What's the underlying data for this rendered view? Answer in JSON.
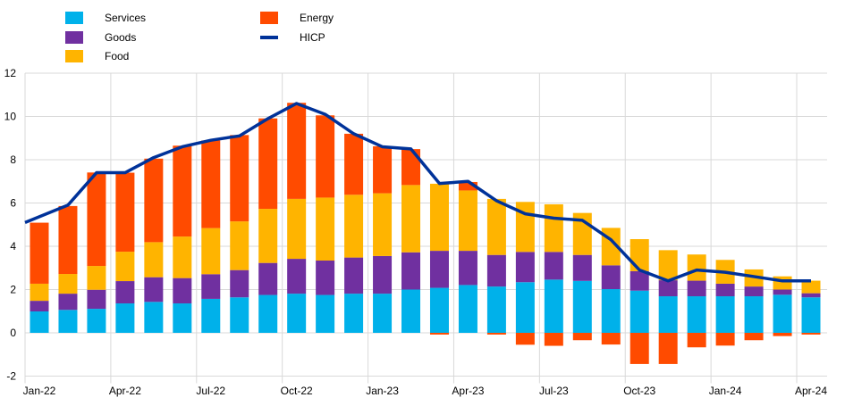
{
  "chart_data": {
    "type": "bar",
    "stacked": true,
    "title": "",
    "xlabel": "",
    "ylabel": "",
    "ylim": [
      -2,
      12
    ],
    "yticks": [
      -2,
      0,
      2,
      4,
      6,
      8,
      10,
      12
    ],
    "grid": true,
    "legend_position": "top-left",
    "categories": [
      "Jan-22",
      "Feb-22",
      "Mar-22",
      "Apr-22",
      "May-22",
      "Jun-22",
      "Jul-22",
      "Aug-22",
      "Sep-22",
      "Oct-22",
      "Nov-22",
      "Dec-22",
      "Jan-23",
      "Feb-23",
      "Mar-23",
      "Apr-23",
      "May-23",
      "Jun-23",
      "Jul-23",
      "Aug-23",
      "Sep-23",
      "Oct-23",
      "Nov-23",
      "Dec-23",
      "Jan-24",
      "Feb-24",
      "Mar-24",
      "Apr-24"
    ],
    "xtick_labels": [
      "Jan-22",
      "Apr-22",
      "Jul-22",
      "Oct-22",
      "Jan-23",
      "Apr-23",
      "Jul-23",
      "Oct-23",
      "Jan-24",
      "Apr-24"
    ],
    "series": [
      {
        "name": "Services",
        "kind": "bar",
        "color": "#00B1EA",
        "values": [
          0.99,
          1.06,
          1.11,
          1.36,
          1.43,
          1.36,
          1.57,
          1.64,
          1.75,
          1.81,
          1.75,
          1.81,
          1.81,
          2.0,
          2.08,
          2.21,
          2.14,
          2.34,
          2.46,
          2.4,
          2.02,
          1.95,
          1.69,
          1.69,
          1.69,
          1.69,
          1.76,
          1.64
        ]
      },
      {
        "name": "Goods",
        "kind": "bar",
        "color": "#7030A0",
        "values": [
          0.49,
          0.75,
          0.88,
          1.03,
          1.14,
          1.17,
          1.14,
          1.26,
          1.48,
          1.61,
          1.59,
          1.67,
          1.74,
          1.72,
          1.71,
          1.58,
          1.46,
          1.4,
          1.28,
          1.2,
          1.1,
          0.9,
          0.74,
          0.72,
          0.58,
          0.45,
          0.24,
          0.19
        ]
      },
      {
        "name": "Food",
        "kind": "bar",
        "color": "#FFB400",
        "values": [
          0.79,
          0.91,
          1.1,
          1.36,
          1.62,
          1.92,
          2.13,
          2.25,
          2.5,
          2.77,
          2.91,
          2.9,
          2.9,
          3.11,
          3.1,
          2.79,
          2.59,
          2.31,
          2.2,
          1.94,
          1.73,
          1.48,
          1.39,
          1.21,
          1.1,
          0.79,
          0.61,
          0.58
        ]
      },
      {
        "name": "Energy",
        "kind": "bar",
        "color": "#FF4B00",
        "values": [
          2.82,
          3.14,
          4.32,
          3.65,
          3.86,
          4.2,
          4.05,
          3.99,
          4.18,
          4.44,
          3.8,
          2.82,
          2.17,
          1.66,
          -0.08,
          0.39,
          -0.08,
          -0.55,
          -0.6,
          -0.34,
          -0.54,
          -1.44,
          -1.44,
          -0.67,
          -0.59,
          -0.34,
          -0.15,
          -0.08
        ]
      },
      {
        "name": "HICP",
        "kind": "line",
        "color": "#003299",
        "values": [
          5.1,
          5.9,
          7.4,
          7.4,
          8.1,
          8.6,
          8.9,
          9.1,
          9.9,
          10.6,
          10.1,
          9.2,
          8.6,
          8.5,
          6.9,
          7.0,
          6.1,
          5.5,
          5.3,
          5.2,
          4.3,
          2.9,
          2.4,
          2.9,
          2.8,
          2.6,
          2.4,
          2.4
        ]
      }
    ]
  }
}
